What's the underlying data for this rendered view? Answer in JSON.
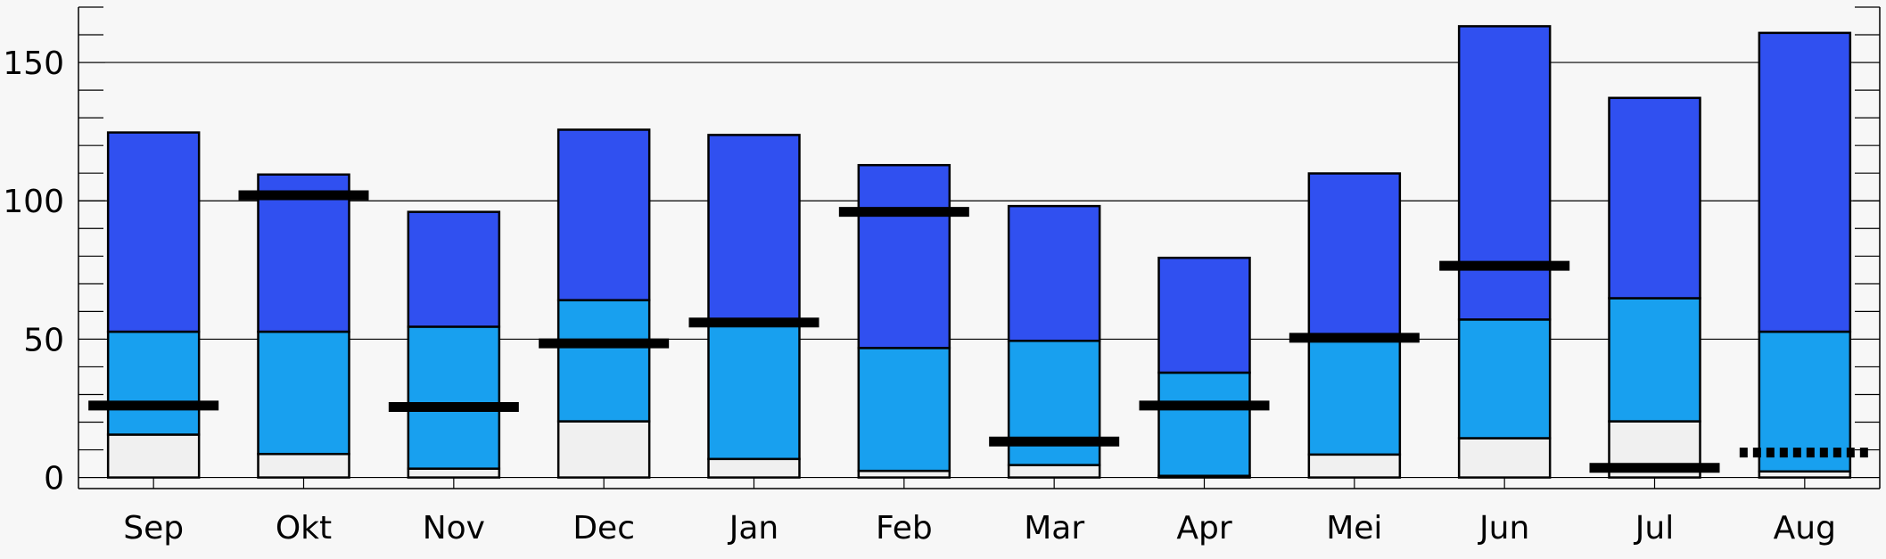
{
  "chart_data": {
    "type": "bar",
    "stacked": true,
    "categories": [
      "Sep",
      "Okt",
      "Nov",
      "Dec",
      "Jan",
      "Feb",
      "Mar",
      "Apr",
      "Mei",
      "Jun",
      "Jul",
      "Aug"
    ],
    "series": [
      {
        "values": [
          15.5,
          8.5,
          3.2,
          20.3,
          6.7,
          2.4,
          4.5,
          0.6,
          8.3,
          14.2,
          20.3,
          2.2
        ]
      },
      {
        "values": [
          37.2,
          44.2,
          51.3,
          43.8,
          48.4,
          44.4,
          44.9,
          37.3,
          41.8,
          42.9,
          44.5,
          50.5
        ]
      },
      {
        "values": [
          72.0,
          56.8,
          41.5,
          61.6,
          68.7,
          66.1,
          48.7,
          41.5,
          59.8,
          106.0,
          72.4,
          108.0
        ]
      }
    ],
    "reference_values": [
      26.0,
      102.0,
      25.5,
      48.5,
      56.0,
      96.0,
      13.0,
      26.0,
      50.5,
      76.5,
      3.5,
      9.0
    ],
    "reference_styles": [
      "solid",
      "solid",
      "solid",
      "solid",
      "solid",
      "solid",
      "solid",
      "solid",
      "solid",
      "solid",
      "solid",
      "dotted"
    ],
    "y_ticks": [
      0,
      50,
      100,
      150
    ],
    "ylim": [
      -4,
      170
    ],
    "grid": true,
    "colors": {
      "series": [
        "#f0f0f0",
        "#18a0ef",
        "#3050f0"
      ],
      "reference": "#000000",
      "background": "#f7f7f7",
      "grid": "#000000"
    }
  }
}
